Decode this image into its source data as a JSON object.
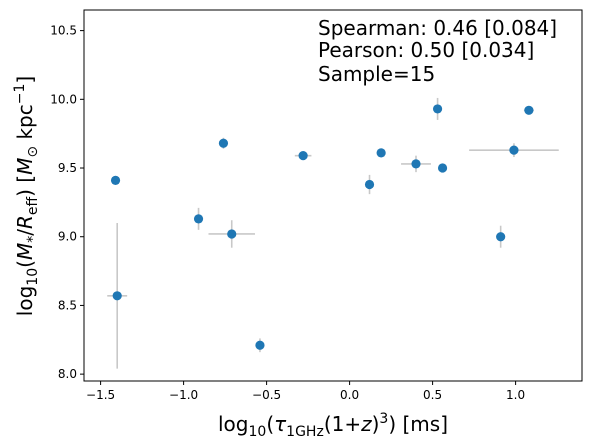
{
  "chart_data": {
    "type": "scatter",
    "xlim": [
      -1.6,
      1.4
    ],
    "ylim": [
      7.95,
      10.65
    ],
    "x_ticks": [
      -1.5,
      -1.0,
      -0.5,
      0.0,
      0.5,
      1.0
    ],
    "x_tick_labels": [
      "−1.5",
      "−1.0",
      "−0.5",
      "0.0",
      "0.5",
      "1.0"
    ],
    "y_ticks": [
      8.0,
      8.5,
      9.0,
      9.5,
      10.0,
      10.5
    ],
    "y_tick_labels": [
      "8.0",
      "8.5",
      "9.0",
      "9.5",
      "10.0",
      "10.5"
    ],
    "xlabel": "log10(τ1GHz(1+z)³) [ms]",
    "ylabel": "log10(M*/Reff) [M⊙ kpc⁻¹]",
    "grid": false,
    "marker_color": "#1f77b4",
    "errorbar_color": "#c8c8c8",
    "annotations": [
      "Spearman: 0.46 [0.084]",
      "Pearson: 0.50 [0.034]",
      "Sample=15"
    ],
    "points": [
      {
        "x": -1.41,
        "y": 9.41,
        "xerr": 0.02,
        "yerr": 0.03
      },
      {
        "x": -1.4,
        "y": 8.57,
        "xerr": 0.06,
        "yerr": 0.53
      },
      {
        "x": -0.91,
        "y": 9.13,
        "xerr": 0.02,
        "yerr": 0.08
      },
      {
        "x": -0.76,
        "y": 9.68,
        "xerr": 0.02,
        "yerr": 0.04
      },
      {
        "x": -0.71,
        "y": 9.02,
        "xerr": 0.14,
        "yerr": 0.1
      },
      {
        "x": -0.54,
        "y": 8.21,
        "xerr": 0.02,
        "yerr": 0.05
      },
      {
        "x": -0.28,
        "y": 9.59,
        "xerr": 0.05,
        "yerr": 0.02
      },
      {
        "x": 0.12,
        "y": 9.38,
        "xerr": 0.02,
        "yerr": 0.07
      },
      {
        "x": 0.19,
        "y": 9.61,
        "xerr": 0.02,
        "yerr": 0.03
      },
      {
        "x": 0.4,
        "y": 9.53,
        "xerr": 0.09,
        "yerr": 0.06
      },
      {
        "x": 0.53,
        "y": 9.93,
        "xerr": 0.02,
        "yerr": 0.08
      },
      {
        "x": 0.56,
        "y": 9.5,
        "xerr": 0.02,
        "yerr": 0.02
      },
      {
        "x": 0.91,
        "y": 9.0,
        "xerr": 0.02,
        "yerr": 0.08
      },
      {
        "x": 0.99,
        "y": 9.63,
        "xerr": 0.27,
        "yerr": 0.05
      },
      {
        "x": 1.08,
        "y": 9.92,
        "xerr": 0.03,
        "yerr": 0.02
      }
    ]
  }
}
